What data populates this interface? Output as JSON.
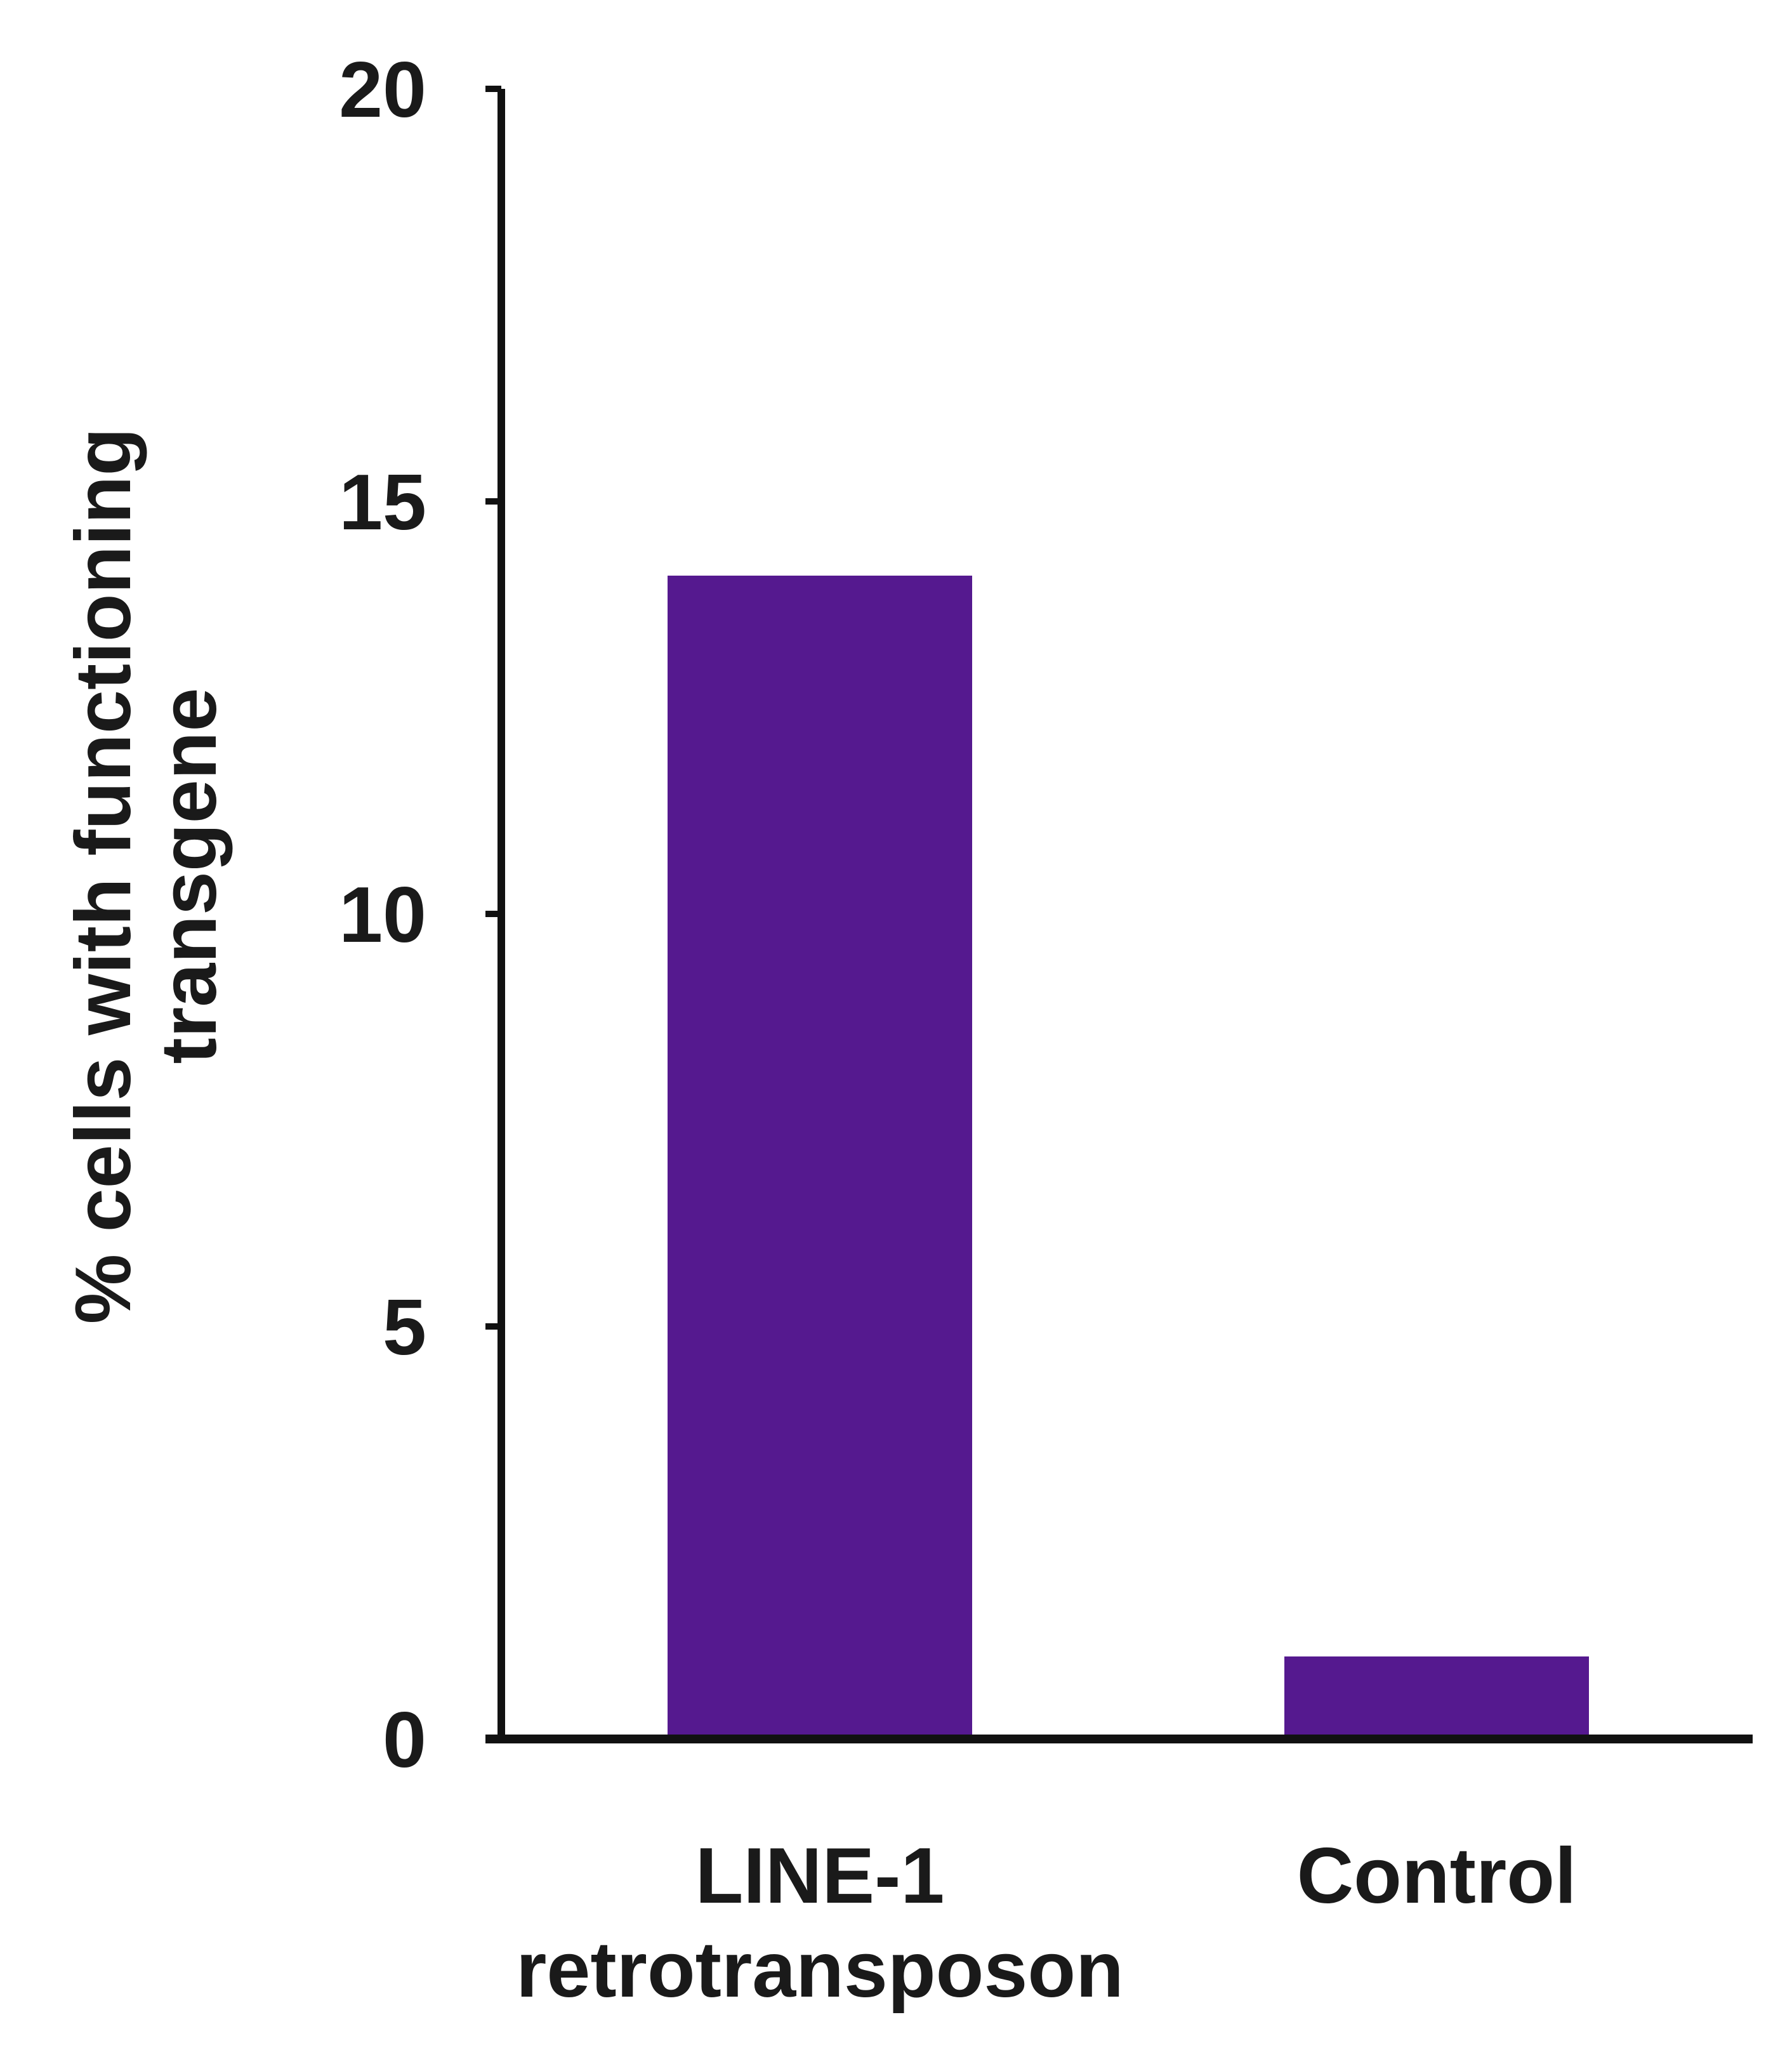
{
  "chart_data": {
    "type": "bar",
    "categories": [
      "LINE-1 retrotransposon",
      "Control"
    ],
    "category_label_lines": [
      [
        "LINE-1",
        "retrotransposon"
      ],
      [
        "Control"
      ]
    ],
    "values": [
      14.1,
      1.0
    ],
    "title": "",
    "xlabel": "",
    "ylabel": "% cells with functioning transgene",
    "ylabel_lines": [
      "% cells with functioning",
      "transgene"
    ],
    "ylim": [
      0,
      20
    ],
    "yticks": [
      0,
      5,
      10,
      15,
      20
    ],
    "ytick_labels": [
      "0",
      "5",
      "10",
      "15",
      "20"
    ],
    "grid": false,
    "legend": "none",
    "colors": {
      "bar": "#55198f",
      "axis": "#111111",
      "text": "#1a1a1a"
    }
  }
}
